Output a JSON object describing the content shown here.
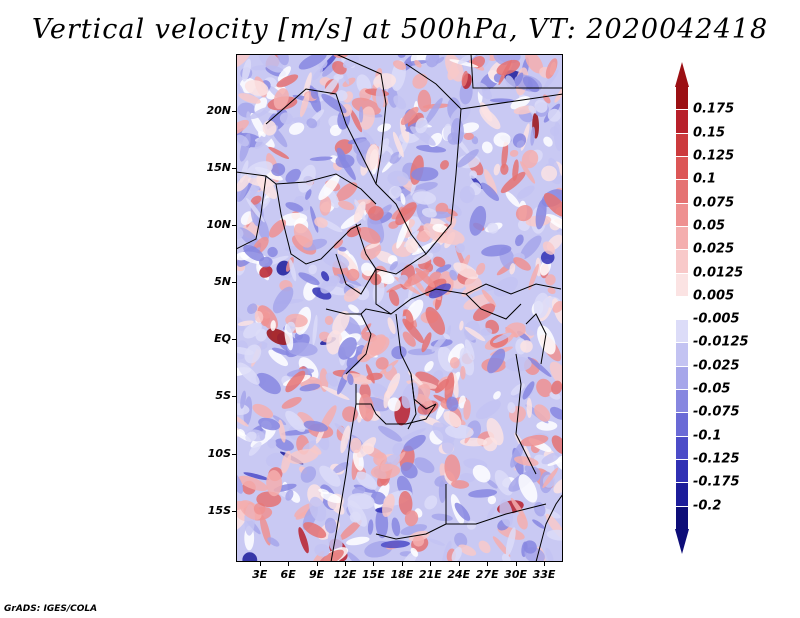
{
  "title": "Vertical velocity [m/s] at 500hPa, VT: 2020042418",
  "map": {
    "region": "Central and southern Africa",
    "field": "Vertical velocity",
    "units": "m/s",
    "level": "500hPa",
    "valid_time": "2020042418",
    "lat_labels": [
      "20N",
      "15N",
      "10N",
      "5N",
      "EQ",
      "5S",
      "10S",
      "15S"
    ],
    "lat_values": [
      20,
      15,
      10,
      5,
      0,
      -5,
      -10,
      -15
    ],
    "lon_labels": [
      "3E",
      "6E",
      "9E",
      "12E",
      "15E",
      "18E",
      "21E",
      "24E",
      "27E",
      "30E",
      "33E"
    ],
    "lon_values": [
      3,
      6,
      9,
      12,
      15,
      18,
      21,
      24,
      27,
      30,
      33
    ],
    "lat_range": [
      -19.5,
      25
    ],
    "lon_range": [
      0.5,
      35
    ]
  },
  "colorbar": {
    "labels": [
      "0.175",
      "0.15",
      "0.125",
      "0.1",
      "0.075",
      "0.05",
      "0.025",
      "0.0125",
      "0.005",
      "-0.005",
      "-0.0125",
      "-0.025",
      "-0.05",
      "-0.075",
      "-0.1",
      "-0.125",
      "-0.175",
      "-0.2"
    ],
    "colors": [
      "#9b0f13",
      "#b8202a",
      "#cc3a3d",
      "#dc5656",
      "#e57272",
      "#ee9090",
      "#f4aeae",
      "#f8c9c9",
      "#fbe3e3",
      "#ffffff",
      "#dcdcf8",
      "#c3c3f2",
      "#a6a6ea",
      "#8787e0",
      "#6a6ad6",
      "#4c4cc8",
      "#3030b4",
      "#1c1c9a",
      "#0d0d78"
    ],
    "top_arrow_color": "#9b0f13",
    "bottom_arrow_color": "#0d0d78"
  },
  "footer": "GrADS: IGES/COLA"
}
